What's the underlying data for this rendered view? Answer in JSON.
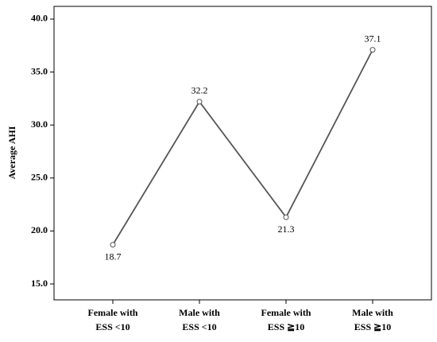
{
  "chart_data": {
    "type": "line",
    "y_label": "Average AHI",
    "categories": [
      [
        "Female with",
        "ESS <10"
      ],
      [
        "Male with",
        "ESS <10"
      ],
      [
        "Female with",
        "ESS ≧10"
      ],
      [
        "Male with",
        "ESS ≧10"
      ]
    ],
    "values": [
      18.7,
      32.2,
      21.3,
      37.1
    ],
    "color": "#555555",
    "ylim": [
      13.5,
      41.2
    ],
    "yticks": [
      {
        "value": 15,
        "label": "15.0"
      },
      {
        "value": 20,
        "label": "20.0"
      },
      {
        "value": 25,
        "label": "25.0"
      },
      {
        "value": 30,
        "label": "30.0"
      },
      {
        "value": 35,
        "label": "35.0"
      },
      {
        "value": 40,
        "label": "40.0"
      }
    ],
    "grid": false
  }
}
